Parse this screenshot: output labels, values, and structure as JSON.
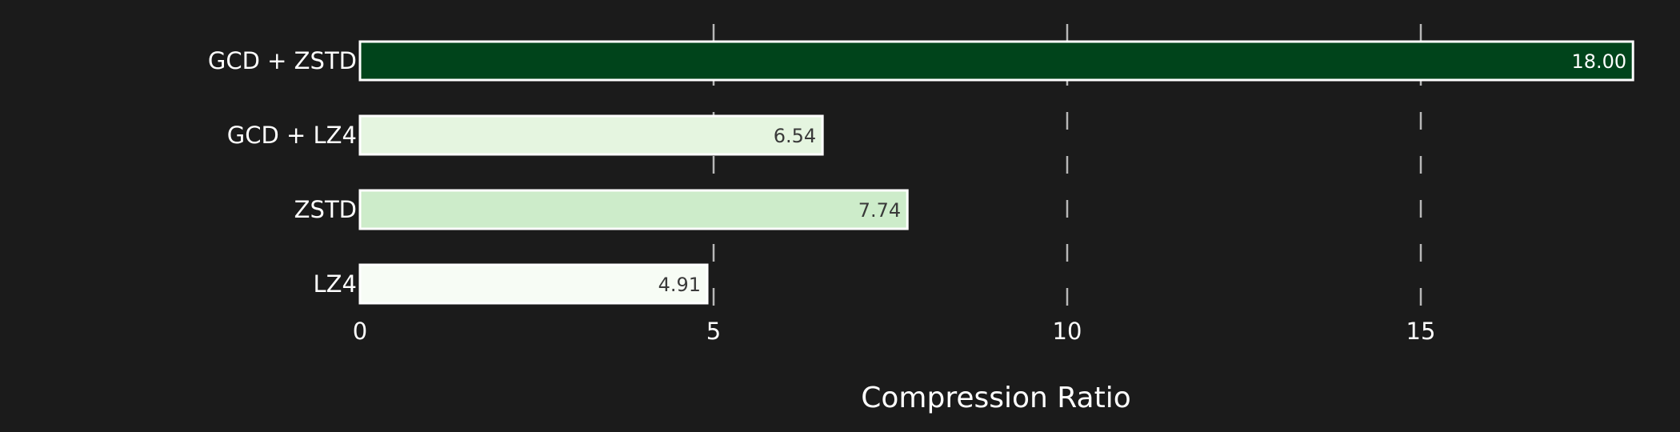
{
  "chart_data": {
    "type": "bar",
    "orientation": "horizontal",
    "title": "",
    "xlabel": "Compression Ratio",
    "ylabel": "",
    "categories": [
      "GCD + ZSTD",
      "GCD + LZ4",
      "ZSTD",
      "LZ4"
    ],
    "values": [
      18.0,
      6.54,
      7.74,
      4.91
    ],
    "value_labels": [
      "18.00",
      "6.54",
      "7.74",
      "4.91"
    ],
    "bar_colors": [
      "#00441b",
      "#e5f5e0",
      "#cdecca",
      "#f7fcf5"
    ],
    "label_colors": [
      "#ffffff",
      "#3a3a3a",
      "#3a3a3a",
      "#3a3a3a"
    ],
    "xlim": [
      0,
      18
    ],
    "xticks": [
      0,
      5,
      10,
      15
    ],
    "xtick_labels": [
      "0",
      "5",
      "10",
      "15"
    ],
    "grid": "vertical dashed",
    "legend": "none",
    "colors": {
      "background": "#1b1b1b",
      "text": "#ffffff",
      "grid": "#b8b8b8",
      "bar_edge": "#ffffff"
    }
  }
}
